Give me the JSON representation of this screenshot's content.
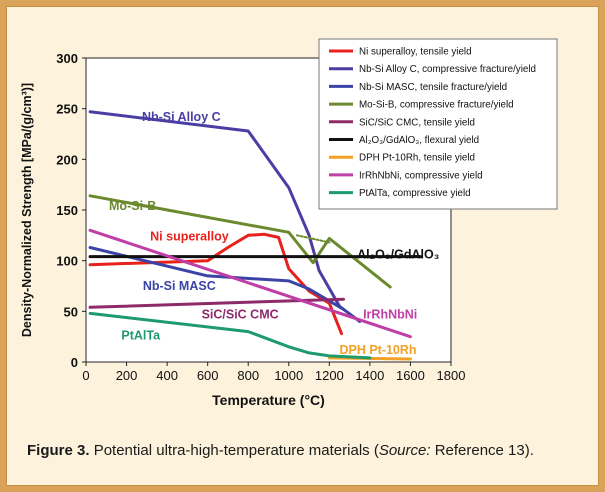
{
  "chart_data": {
    "type": "line",
    "xlabel": "Temperature (°C)",
    "ylabel": "Density-Normalized Strength [MPa/(g/cm³)]",
    "xlim": [
      0,
      1800
    ],
    "ylim": [
      0,
      300
    ],
    "x_ticks": [
      "0",
      "200",
      "400",
      "600",
      "800",
      "1000",
      "1200",
      "1400",
      "1600",
      "1800"
    ],
    "y_ticks": [
      "0",
      "50",
      "100",
      "150",
      "200",
      "250",
      "300"
    ],
    "grid": false,
    "legend_position": "top-right",
    "series": [
      {
        "name": "Ni superalloy, tensile yield",
        "label": "Ni superalloy",
        "color": "#e8211c",
        "points": [
          [
            20,
            96
          ],
          [
            600,
            100
          ],
          [
            700,
            113
          ],
          [
            800,
            125
          ],
          [
            880,
            126
          ],
          [
            950,
            123
          ],
          [
            1000,
            92
          ],
          [
            1100,
            70
          ],
          [
            1200,
            58
          ],
          [
            1260,
            28
          ]
        ]
      },
      {
        "name": "Nb-Si Alloy C, compressive fracture/yield",
        "label": "Nb-Si Alloy C",
        "color": "#4a3ea4",
        "points": [
          [
            20,
            247
          ],
          [
            800,
            228
          ],
          [
            1000,
            172
          ],
          [
            1100,
            125
          ],
          [
            1150,
            90
          ],
          [
            1250,
            55
          ],
          [
            1350,
            40
          ]
        ]
      },
      {
        "name": "Nb-Si MASC, tensile fracture/yield",
        "label": "Nb-Si MASC",
        "color": "#3b44a6",
        "points": [
          [
            20,
            113
          ],
          [
            600,
            85
          ],
          [
            1000,
            80
          ],
          [
            1100,
            72
          ],
          [
            1270,
            52
          ]
        ]
      },
      {
        "name": "Mo-Si-B, compressive fracture/yield",
        "label": "Mo-Si-B",
        "color": "#6b8a2e",
        "points": [
          [
            20,
            164
          ],
          [
            1000,
            128
          ],
          [
            1120,
            98
          ],
          [
            1200,
            122
          ],
          [
            1500,
            74
          ]
        ]
      },
      {
        "name": "Mo-Si-B dotted extension",
        "color": "#6b8a2e",
        "dashed": true,
        "points": [
          [
            1040,
            125
          ],
          [
            1200,
            118
          ]
        ]
      },
      {
        "name": "SiC/SiC CMC, tensile yield",
        "label": "SiC/SiC CMC",
        "color": "#8e2a6a",
        "points": [
          [
            20,
            54
          ],
          [
            1270,
            62
          ]
        ]
      },
      {
        "name": "Al2O3/GdAlO3, flexural yield",
        "label": "Al₂O₃/GdAlO₃",
        "color": "#111111",
        "points": [
          [
            20,
            104
          ],
          [
            1650,
            104
          ]
        ]
      },
      {
        "name": "DPH Pt-10Rh, tensile yield",
        "label": "DPH Pt-10Rh",
        "color": "#f3a024",
        "points": [
          [
            1200,
            4
          ],
          [
            1600,
            3
          ]
        ]
      },
      {
        "name": "IrRhNbNi, compressive yield",
        "label": "IrRhNbNi",
        "color": "#c03fa6",
        "points": [
          [
            20,
            130
          ],
          [
            1600,
            25
          ]
        ]
      },
      {
        "name": "PtAlTa, compressive yield",
        "label": "PtAlTa",
        "color": "#1e9a6f",
        "points": [
          [
            20,
            48
          ],
          [
            800,
            30
          ],
          [
            1000,
            15
          ],
          [
            1100,
            9
          ],
          [
            1200,
            6
          ],
          [
            1400,
            4
          ]
        ]
      }
    ],
    "legend": [
      {
        "text": "Ni superalloy, tensile yield",
        "color": "#e8211c"
      },
      {
        "text": "Nb-Si Alloy C, compressive fracture/yield",
        "color": "#4a3ea4"
      },
      {
        "text": "Nb-Si MASC, tensile fracture/yield",
        "color": "#3b44a6"
      },
      {
        "text": "Mo-Si-B, compressive fracture/yield",
        "color": "#6b8a2e"
      },
      {
        "text": "SiC/SiC CMC, tensile yield",
        "color": "#8e2a6a"
      },
      {
        "text": "Al₂O₃/GdAlO₃, flexural yield",
        "color": "#111111"
      },
      {
        "text": "DPH Pt-10Rh, tensile yield",
        "color": "#f3a024"
      },
      {
        "text": "IrRhNbNi, compressive yield",
        "color": "#c03fa6"
      },
      {
        "text": "PtAlTa, compressive yield",
        "color": "#1e9a6f"
      }
    ],
    "annotations": [
      {
        "text": "Nb-Si Alloy C",
        "color": "#4a3ea4",
        "x": 470,
        "y": 238
      },
      {
        "text": "Mo-Si-B",
        "color": "#6b8a2e",
        "x": 230,
        "y": 150
      },
      {
        "text": "Ni superalloy",
        "color": "#e8211c",
        "x": 510,
        "y": 120
      },
      {
        "text": "Al₂O₃/GdAlO₃",
        "color": "#111111",
        "x": 1540,
        "y": 102
      },
      {
        "text": "Nb-Si MASC",
        "color": "#3b44a6",
        "x": 460,
        "y": 71
      },
      {
        "text": "SiC/SiC CMC",
        "color": "#8e2a6a",
        "x": 760,
        "y": 43
      },
      {
        "text": "IrRhNbNi",
        "color": "#c03fa6",
        "x": 1500,
        "y": 43
      },
      {
        "text": "PtAlTa",
        "color": "#1e9a6f",
        "x": 270,
        "y": 22
      },
      {
        "text": "DPH Pt-10Rh",
        "color": "#f3a024",
        "x": 1440,
        "y": 8
      }
    ]
  },
  "caption": {
    "label": "Figure 3.",
    "text": "Potential ultra-high-temperature materials (",
    "source_italic": "Source:",
    "text_end": "Reference 13)."
  }
}
